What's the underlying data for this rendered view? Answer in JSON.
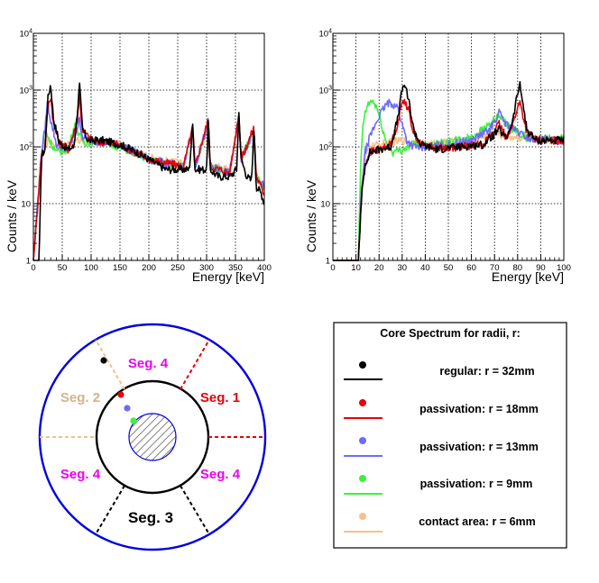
{
  "colors": {
    "regular": "#000000",
    "r18": "#e8000b",
    "r13": "#6b6bff",
    "r9": "#3ef03e",
    "contact": "#f5c08a",
    "outline": "#0000e0",
    "segLabel": "#ee00ee",
    "seg2Label": "#d2b48c"
  },
  "chart_data": [
    {
      "type": "line",
      "panel": "left",
      "xlabel": "Energy [keV]",
      "ylabel": "Counts / keV",
      "xlim": [
        0,
        400
      ],
      "ylim": [
        1,
        10000
      ],
      "yscale": "log",
      "grid": true,
      "xticks": [
        "0",
        "50",
        "100",
        "150",
        "200",
        "250",
        "300",
        "350",
        "400"
      ],
      "yticks": [
        "1",
        "10",
        "10",
        "10",
        "10"
      ],
      "ytick_exps": [
        "",
        "",
        "2",
        "3",
        "4"
      ],
      "series": [
        {
          "name": "regular",
          "x": [
            0,
            5,
            10,
            14,
            20,
            25,
            30,
            35,
            45,
            60,
            70,
            75,
            80,
            85,
            95,
            120,
            150,
            180,
            200,
            230,
            260,
            270,
            276,
            280,
            300,
            303,
            306,
            320,
            340,
            352,
            356,
            360,
            370,
            378,
            382,
            386,
            395,
            400
          ],
          "y": [
            1,
            1,
            1,
            70,
            90,
            700,
            1300,
            300,
            120,
            90,
            100,
            300,
            1200,
            200,
            130,
            130,
            110,
            80,
            60,
            40,
            40,
            40,
            250,
            40,
            40,
            350,
            40,
            30,
            30,
            40,
            400,
            60,
            30,
            25,
            250,
            20,
            15,
            10
          ]
        },
        {
          "name": "passivation: r = 18mm",
          "x": [
            0,
            14,
            20,
            25,
            30,
            35,
            45,
            60,
            75,
            80,
            85,
            100,
            150,
            200,
            260,
            276,
            280,
            303,
            306,
            340,
            356,
            360,
            382,
            386,
            400
          ],
          "y": [
            1,
            70,
            90,
            500,
            800,
            250,
            120,
            90,
            250,
            800,
            200,
            130,
            110,
            60,
            45,
            220,
            45,
            300,
            45,
            35,
            380,
            60,
            220,
            30,
            15
          ]
        },
        {
          "name": "passivation: r = 13mm",
          "x": [
            0,
            14,
            20,
            24,
            30,
            40,
            60,
            75,
            80,
            85,
            100,
            150,
            200,
            260,
            276,
            280,
            303,
            306,
            340,
            356,
            360,
            382,
            386,
            400
          ],
          "y": [
            1,
            80,
            200,
            600,
            300,
            110,
            90,
            200,
            300,
            150,
            130,
            110,
            60,
            45,
            200,
            45,
            280,
            45,
            35,
            350,
            60,
            200,
            30,
            20
          ]
        },
        {
          "name": "passivation: r = 9mm",
          "x": [
            0,
            14,
            20,
            30,
            40,
            60,
            72,
            80,
            90,
            120,
            150,
            200,
            260,
            276,
            280,
            303,
            306,
            340,
            356,
            360,
            382,
            386,
            400
          ],
          "y": [
            1,
            70,
            200,
            120,
            80,
            90,
            250,
            150,
            120,
            120,
            100,
            60,
            45,
            200,
            45,
            260,
            45,
            35,
            330,
            60,
            200,
            30,
            18
          ]
        },
        {
          "name": "contact area: r = 6mm",
          "x": [
            0,
            14,
            20,
            30,
            40,
            60,
            80,
            100,
            150,
            200,
            260,
            276,
            280,
            303,
            306,
            340,
            356,
            360,
            382,
            386,
            400
          ],
          "y": [
            1,
            70,
            120,
            130,
            100,
            110,
            130,
            130,
            110,
            65,
            50,
            180,
            50,
            230,
            50,
            40,
            300,
            60,
            180,
            30,
            18
          ]
        }
      ]
    },
    {
      "type": "line",
      "panel": "right",
      "xlabel": "Energy [keV]",
      "ylabel": "Counts / keV",
      "xlim": [
        0,
        100
      ],
      "ylim": [
        1,
        10000
      ],
      "yscale": "log",
      "grid": true,
      "xticks": [
        "0",
        "10",
        "20",
        "30",
        "40",
        "50",
        "60",
        "70",
        "80",
        "90",
        "100"
      ],
      "yticks": [
        "1",
        "10",
        "10",
        "10",
        "10"
      ],
      "ytick_exps": [
        "",
        "",
        "2",
        "3",
        "4"
      ],
      "series": [
        {
          "name": "regular",
          "x": [
            0,
            11,
            12.5,
            14,
            16,
            20,
            25,
            28,
            30,
            31,
            33,
            35,
            38,
            45,
            55,
            65,
            72,
            75,
            78,
            80,
            81,
            82,
            84,
            88,
            95,
            100
          ],
          "y": [
            1,
            1,
            15,
            50,
            80,
            90,
            100,
            300,
            1000,
            1300,
            600,
            200,
            110,
            90,
            100,
            110,
            200,
            140,
            300,
            900,
            1200,
            700,
            200,
            130,
            130,
            130
          ]
        },
        {
          "name": "passivation: r = 18mm",
          "x": [
            0,
            11,
            12.5,
            14,
            16,
            20,
            25,
            28,
            30,
            31,
            33,
            35,
            38,
            45,
            55,
            65,
            72,
            75,
            78,
            80,
            81,
            82,
            84,
            88,
            95,
            100
          ],
          "y": [
            1,
            1,
            15,
            50,
            80,
            90,
            110,
            250,
            600,
            700,
            400,
            180,
            110,
            95,
            100,
            110,
            250,
            150,
            250,
            500,
            600,
            400,
            180,
            130,
            130,
            130
          ]
        },
        {
          "name": "passivation: r = 13mm",
          "x": [
            0,
            11,
            12.5,
            14,
            16,
            20,
            23,
            25,
            28,
            30,
            32,
            35,
            40,
            50,
            60,
            68,
            72,
            75,
            80,
            85,
            95,
            100
          ],
          "y": [
            1,
            1,
            20,
            80,
            150,
            350,
            550,
            600,
            500,
            250,
            130,
            100,
            100,
            110,
            130,
            200,
            400,
            250,
            180,
            140,
            130,
            130
          ]
        },
        {
          "name": "passivation: r = 9mm",
          "x": [
            0,
            11,
            12,
            13,
            15,
            17,
            19,
            21,
            23,
            26,
            30,
            35,
            40,
            50,
            60,
            68,
            72,
            75,
            80,
            85,
            95,
            100
          ],
          "y": [
            1,
            1,
            40,
            250,
            550,
            650,
            500,
            250,
            120,
            80,
            90,
            110,
            110,
            120,
            150,
            250,
            350,
            250,
            180,
            140,
            140,
            140
          ]
        },
        {
          "name": "contact area: r = 6mm",
          "x": [
            0,
            11,
            12.5,
            14,
            16,
            20,
            25,
            30,
            35,
            40,
            50,
            60,
            70,
            75,
            80,
            85,
            95,
            100
          ],
          "y": [
            1,
            1,
            20,
            70,
            100,
            110,
            120,
            130,
            120,
            110,
            120,
            130,
            180,
            150,
            150,
            130,
            130,
            130
          ]
        }
      ]
    }
  ],
  "exp_label_base": "10",
  "diagram": {
    "segments": [
      "Seg. 4",
      "Seg. 2",
      "Seg. 1",
      "Seg. 4",
      "Seg. 4",
      "Seg. 3"
    ]
  },
  "legend": {
    "title": "Core Spectrum for radii, r:",
    "entries": [
      "regular: r = 32mm",
      "passivation: r = 18mm",
      "passivation: r = 13mm",
      "passivation: r = 9mm",
      "contact area: r = 6mm"
    ]
  }
}
